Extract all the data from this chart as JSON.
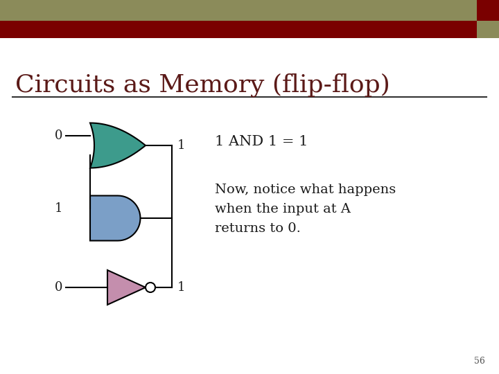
{
  "title": "Circuits as Memory (flip-flop)",
  "title_color": "#5B1A18",
  "title_fontsize": 26,
  "bg_color": "#FFFFFF",
  "header_color_olive": "#8B8B5A",
  "header_color_red": "#7A0000",
  "or_gate_color": "#3D9B8C",
  "and_gate_color": "#7B9FC7",
  "not_gate_color": "#C48EAD",
  "equation_text": "1 AND 1 = 1",
  "body_text": "Now, notice what happens\nwhen the input at A\nreturns to 0.",
  "text_color": "#1A1A1A",
  "page_number": "56"
}
